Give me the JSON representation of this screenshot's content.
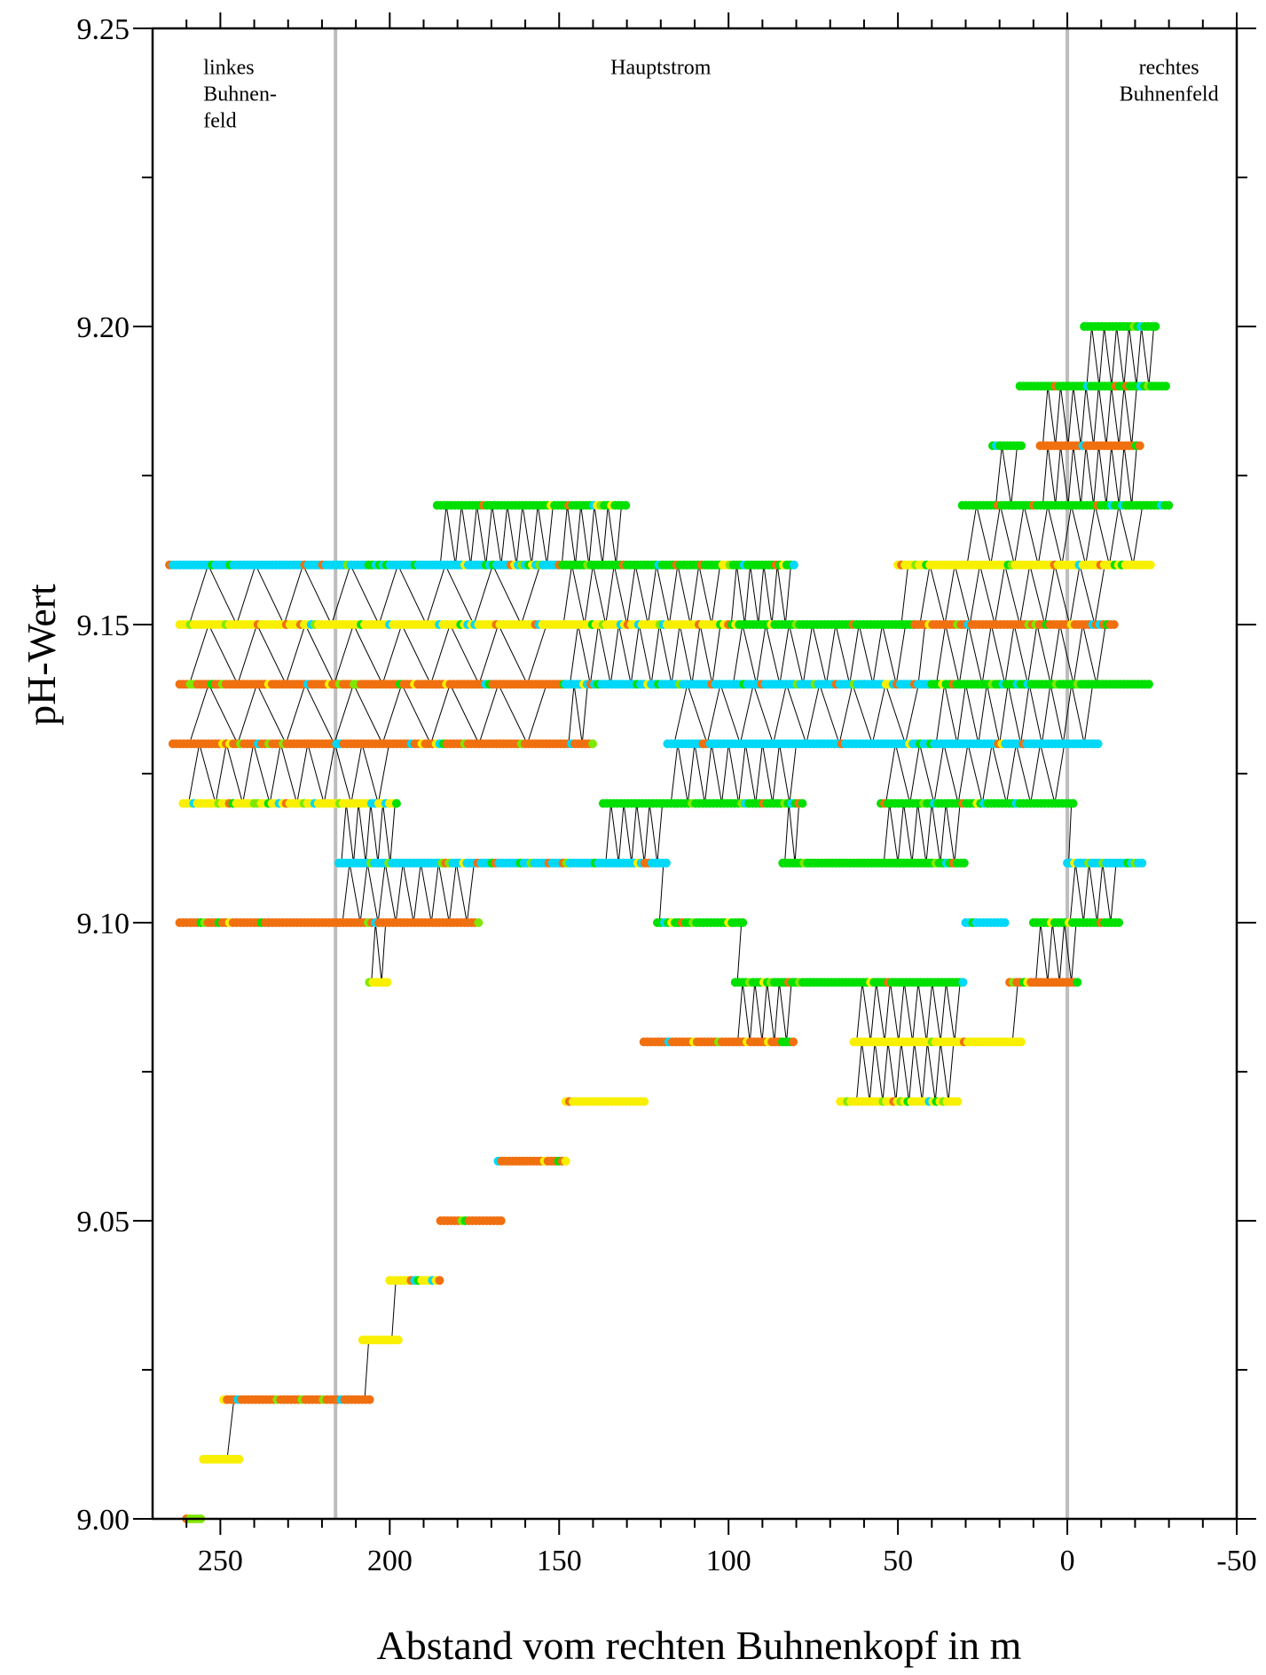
{
  "chart_data": {
    "type": "scatter",
    "title": "",
    "xlabel": "Abstand vom rechten Buhnenkopf in m",
    "ylabel": "pH-Wert",
    "xlim": [
      270,
      -50
    ],
    "ylim": [
      9.0,
      9.25
    ],
    "x_reversed": true,
    "x_ticks": [
      250,
      200,
      150,
      100,
      50,
      0,
      -50
    ],
    "y_ticks": [
      9.0,
      9.05,
      9.1,
      9.15,
      9.2,
      9.25
    ],
    "y_tick_labels": [
      "9.00",
      "9.05",
      "9.10",
      "9.15",
      "9.20",
      "9.25"
    ],
    "x_tick_labels": [
      "250",
      "200",
      "150",
      "100",
      "50",
      "0",
      "-50"
    ],
    "grid": false,
    "vertical_lines": [
      {
        "x": 216,
        "color": "#bdbdbd"
      },
      {
        "x": 0,
        "color": "#bdbdbd"
      }
    ],
    "annotations": [
      {
        "lines": [
          "linkes",
          "Buhnen-",
          "feld"
        ],
        "x": 255,
        "y": 9.245,
        "align": "start"
      },
      {
        "lines": [
          "Hauptstrom"
        ],
        "x": 120,
        "y": 9.245,
        "align": "middle"
      },
      {
        "lines": [
          "rechtes",
          "Buhnenfeld"
        ],
        "x": -30,
        "y": 9.245,
        "align": "middle"
      }
    ],
    "marker_colors": {
      "green": "#00e000",
      "lightgreen": "#80e800",
      "cyan": "#00d8f8",
      "blue": "#1870f0",
      "yellow": "#f8f000",
      "orange": "#f07010",
      "red": "#e01010"
    },
    "connector_color": "#000000",
    "staircase": [
      {
        "y": 9.0,
        "x": [
          260,
          255
        ],
        "color": "lightgreen"
      },
      {
        "y": 9.01,
        "x": [
          255,
          244
        ],
        "color": "yellow"
      },
      {
        "y": 9.02,
        "x": [
          249,
          205
        ],
        "color": "orange"
      },
      {
        "y": 9.03,
        "x": [
          208,
          197
        ],
        "color": "yellow"
      },
      {
        "y": 9.04,
        "x": [
          200,
          185
        ],
        "color": "yellow"
      },
      {
        "y": 9.05,
        "x": [
          185,
          167
        ],
        "color": "orange"
      },
      {
        "y": 9.06,
        "x": [
          168,
          147
        ],
        "color": "orange"
      },
      {
        "y": 9.07,
        "x": [
          148,
          124
        ],
        "color": "yellow"
      },
      {
        "y": 9.08,
        "x": [
          125,
          80
        ],
        "color": "orange"
      },
      {
        "y": 9.07,
        "x": [
          67,
          32
        ],
        "color": "yellow"
      },
      {
        "y": 9.08,
        "x": [
          63,
          13
        ],
        "color": "yellow"
      },
      {
        "y": 9.09,
        "x": [
          98,
          30
        ],
        "color": "green"
      },
      {
        "y": 9.09,
        "x": [
          17,
          -4
        ],
        "color": "orange"
      },
      {
        "y": 9.1,
        "x": [
          262,
          173
        ],
        "color": "orange"
      },
      {
        "y": 9.09,
        "x": [
          206,
          200
        ],
        "color": "yellow"
      },
      {
        "y": 9.1,
        "x": [
          121,
          95
        ],
        "color": "green"
      },
      {
        "y": 9.1,
        "x": [
          30,
          18
        ],
        "color": "cyan"
      },
      {
        "y": 9.1,
        "x": [
          10,
          -16
        ],
        "color": "green"
      },
      {
        "y": 9.11,
        "x": [
          215,
          118
        ],
        "color": "cyan"
      },
      {
        "y": 9.11,
        "x": [
          84,
          30
        ],
        "color": "green"
      },
      {
        "y": 9.11,
        "x": [
          0,
          -23
        ],
        "color": "cyan"
      },
      {
        "y": 9.12,
        "x": [
          261,
          197
        ],
        "color": "yellow"
      },
      {
        "y": 9.12,
        "x": [
          137,
          78
        ],
        "color": "green"
      },
      {
        "y": 9.12,
        "x": [
          55,
          -2
        ],
        "color": "green"
      },
      {
        "y": 9.13,
        "x": [
          264,
          140
        ],
        "color": "orange"
      },
      {
        "y": 9.13,
        "x": [
          118,
          -10
        ],
        "color": "cyan"
      },
      {
        "y": 9.14,
        "x": [
          262,
          148
        ],
        "color": "orange"
      },
      {
        "y": 9.14,
        "x": [
          148,
          40
        ],
        "color": "cyan"
      },
      {
        "y": 9.14,
        "x": [
          40,
          -25
        ],
        "color": "green"
      },
      {
        "y": 9.15,
        "x": [
          262,
          100
        ],
        "color": "yellow"
      },
      {
        "y": 9.15,
        "x": [
          100,
          45
        ],
        "color": "green"
      },
      {
        "y": 9.15,
        "x": [
          45,
          -14
        ],
        "color": "orange"
      },
      {
        "y": 9.16,
        "x": [
          265,
          150
        ],
        "color": "cyan"
      },
      {
        "y": 9.16,
        "x": [
          150,
          80
        ],
        "color": "green"
      },
      {
        "y": 9.16,
        "x": [
          50,
          -25
        ],
        "color": "yellow"
      },
      {
        "y": 9.17,
        "x": [
          186,
          130
        ],
        "color": "green"
      },
      {
        "y": 9.17,
        "x": [
          31,
          -30
        ],
        "color": "green"
      },
      {
        "y": 9.18,
        "x": [
          22,
          13
        ],
        "color": "green"
      },
      {
        "y": 9.18,
        "x": [
          8,
          -22
        ],
        "color": "orange"
      },
      {
        "y": 9.19,
        "x": [
          14,
          -30
        ],
        "color": "green"
      },
      {
        "y": 9.2,
        "x": [
          -5,
          -27
        ],
        "color": "green"
      }
    ]
  }
}
